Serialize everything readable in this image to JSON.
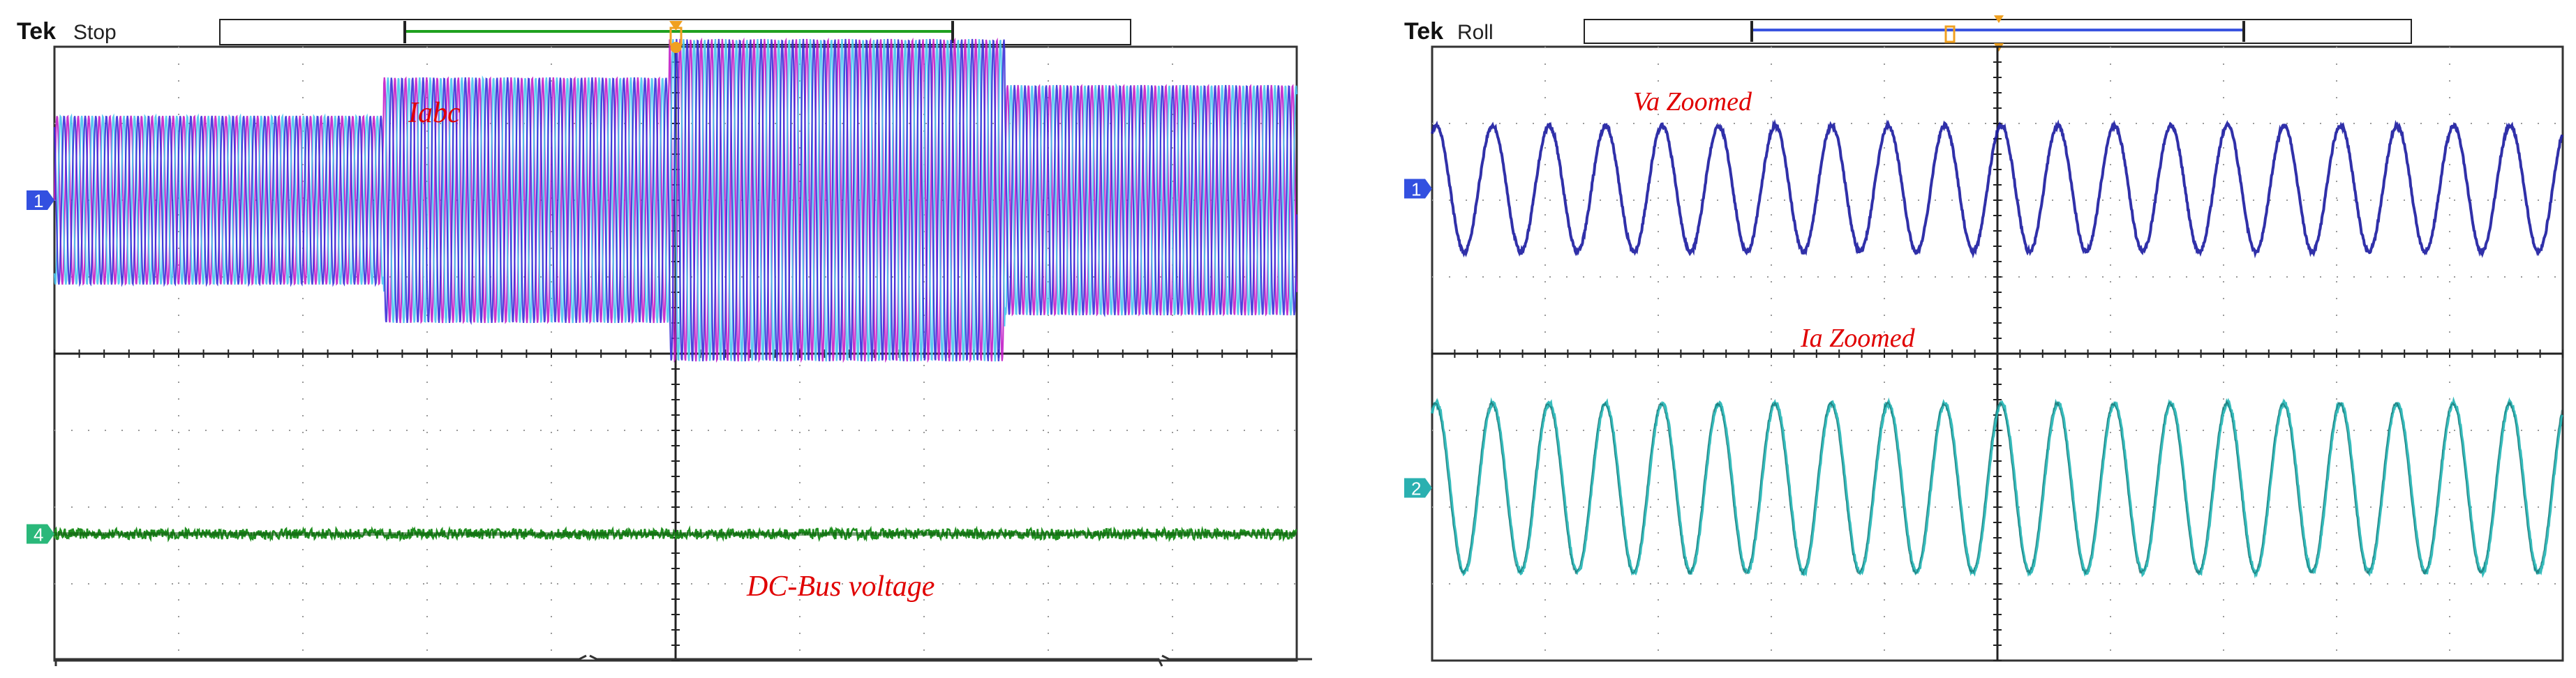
{
  "chart_data": [
    {
      "type": "line",
      "panel": "left",
      "header": {
        "brand": "Tek",
        "status": "Stop"
      },
      "grid": true,
      "divisions": {
        "x": 10,
        "y": 8
      },
      "channel_markers": [
        "1",
        "4"
      ],
      "annotations": [
        "Iabc",
        "DC-Bus voltage"
      ],
      "series": [
        {
          "name": "Iabc",
          "channel": "1",
          "phases": 3,
          "segments": [
            {
              "x_start": 0.0,
              "x_end": 2.65,
              "amplitude": 1.1
            },
            {
              "x_start": 2.65,
              "x_end": 4.95,
              "amplitude": 1.6
            },
            {
              "x_start": 4.95,
              "x_end": 7.65,
              "amplitude": 2.1
            },
            {
              "x_start": 7.65,
              "x_end": 10.0,
              "amplitude": 1.5
            }
          ],
          "offset_div": 2.0
        },
        {
          "name": "DC-Bus voltage",
          "channel": "4",
          "level_div": -2.35,
          "ripple_div": 0.07
        }
      ],
      "colors": {
        "phase_a": "#3a2fd8",
        "phase_b": "#49c3ee",
        "phase_c": "#c21ec8",
        "dc_bus": "#1f8e1f",
        "ch1_marker": "#3350e0",
        "ch4_marker": "#2ab87a",
        "trigger": "#f0a020",
        "annotation": "#e00000"
      }
    },
    {
      "type": "line",
      "panel": "right",
      "header": {
        "brand": "Tek",
        "status": "Roll"
      },
      "grid": true,
      "divisions": {
        "x": 10,
        "y": 8
      },
      "channel_markers": [
        "1",
        "2"
      ],
      "annotations": [
        "Va Zoomed",
        "Ia Zoomed"
      ],
      "series": [
        {
          "name": "Va Zoomed",
          "channel": "1",
          "cycles": 20,
          "amplitude_div": 0.82,
          "offset_div": 2.15
        },
        {
          "name": "Ia Zoomed",
          "channel": "2",
          "cycles": 20,
          "amplitude_div": 1.1,
          "offset_div": -1.75
        }
      ],
      "colors": {
        "va": "#1a1aa0",
        "ia": "#1fb5b5",
        "ch1_marker": "#3350e0",
        "ch2_marker": "#2ab0b0",
        "trigger": "#f0a020",
        "annotation": "#e00000"
      }
    }
  ]
}
